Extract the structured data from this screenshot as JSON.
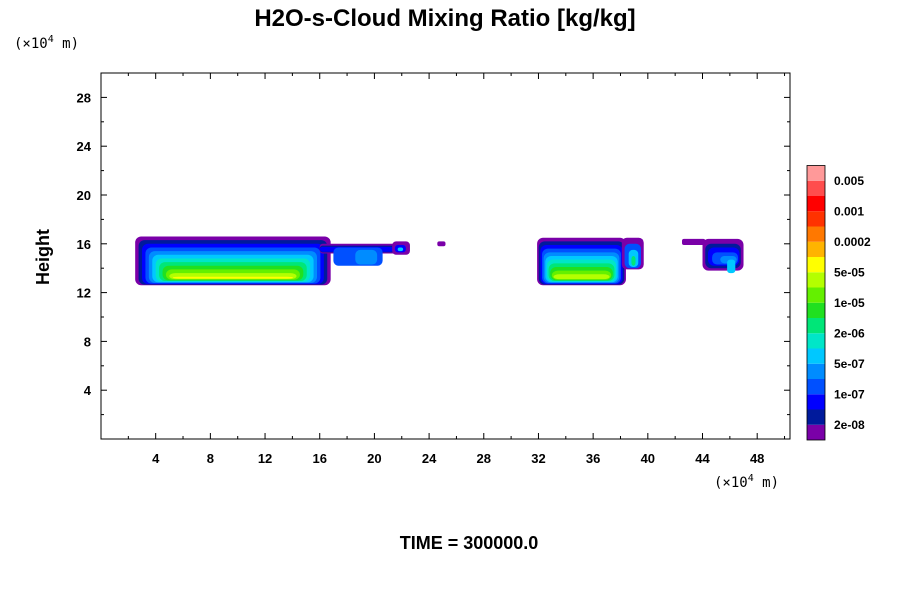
{
  "chart_data": {
    "type": "contour",
    "title": "H2O-s-Cloud Mixing Ratio [kg/kg]",
    "ylabel": "Height",
    "y_unit": {
      "base": "(×10",
      "exp": "4",
      "rest": " m)"
    },
    "x_unit": {
      "base": "(×10",
      "exp": "4",
      "rest": " m)"
    },
    "xlim": [
      0,
      50.4
    ],
    "ylim": [
      0,
      30
    ],
    "x_ticks": [
      4,
      8,
      12,
      16,
      20,
      24,
      28,
      32,
      36,
      40,
      44,
      48
    ],
    "y_ticks": [
      4,
      8,
      12,
      16,
      20,
      24,
      28
    ],
    "time_label": "TIME = 300000.0",
    "colorbar": {
      "colors": [
        "#7a00a8",
        "#001a9c",
        "#0000ff",
        "#0050ff",
        "#008cff",
        "#00c8ff",
        "#00e6c8",
        "#00e678",
        "#20e020",
        "#64f000",
        "#b4ff00",
        "#ffff00",
        "#ffb400",
        "#ff7800",
        "#ff3200",
        "#ff0000",
        "#ff4d4d",
        "#ff9999"
      ],
      "labels": [
        "2e-08",
        "1e-07",
        "5e-07",
        "2e-06",
        "1e-05",
        "5e-05",
        "0.0002",
        "0.001",
        "0.005"
      ]
    },
    "cloud_regions": [
      {
        "x_range": [
          2.5,
          22.5
        ],
        "y_range": [
          12.5,
          16.6
        ],
        "max_level": "0.0002"
      },
      {
        "x_range": [
          24.6,
          25.2
        ],
        "y_range": [
          15.8,
          16.2
        ],
        "max_level": "2e-08"
      },
      {
        "x_range": [
          31.9,
          39.7
        ],
        "y_range": [
          12.5,
          16.5
        ],
        "max_level": "5e-05"
      },
      {
        "x_range": [
          42.5,
          47.0
        ],
        "y_range": [
          13.6,
          16.4
        ],
        "max_level": "5e-07"
      }
    ]
  }
}
